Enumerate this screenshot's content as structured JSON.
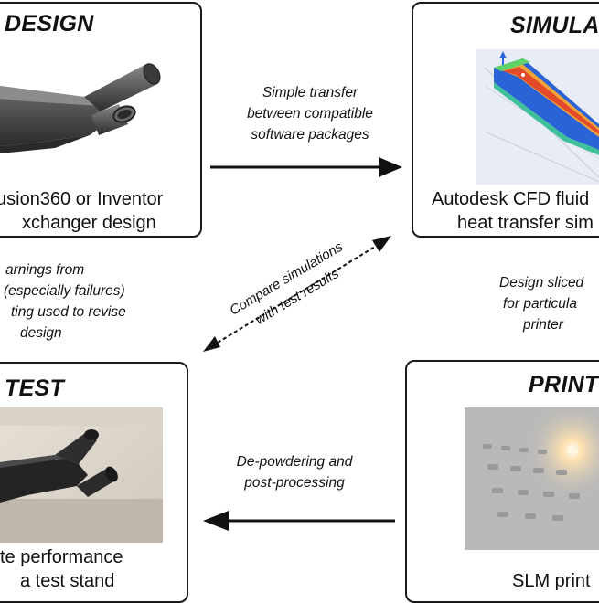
{
  "stages": {
    "design": {
      "title": "DESIGN",
      "caption_1": "usion360 or Inventor",
      "caption_2": "xchanger design"
    },
    "simulate": {
      "title": "SIMULA",
      "caption_1": "Autodesk CFD fluid",
      "caption_2": "heat transfer sim"
    },
    "test": {
      "title": "TEST",
      "caption_1": "te performance",
      "caption_2": "a test stand"
    },
    "print": {
      "title": "PRINT",
      "caption_1": "SLM print"
    }
  },
  "flows": {
    "design_to_simulate": [
      "Simple transfer",
      "between compatible",
      "software packages"
    ],
    "simulate_to_print": [
      "Design sliced",
      "for particula",
      "printer"
    ],
    "print_to_test": [
      "De-powdering and",
      "post-processing"
    ],
    "test_to_design": [
      "arnings from",
      "(especially failures)",
      "ting used to revise",
      "design"
    ],
    "compare": [
      "Compare simulations",
      "with test results"
    ]
  },
  "colors": {
    "stroke": "#1a1a1a",
    "part_metal": "#4a4a4a",
    "cfd_blue": "#2a63d6",
    "print_bed": "#b9b9b9"
  }
}
